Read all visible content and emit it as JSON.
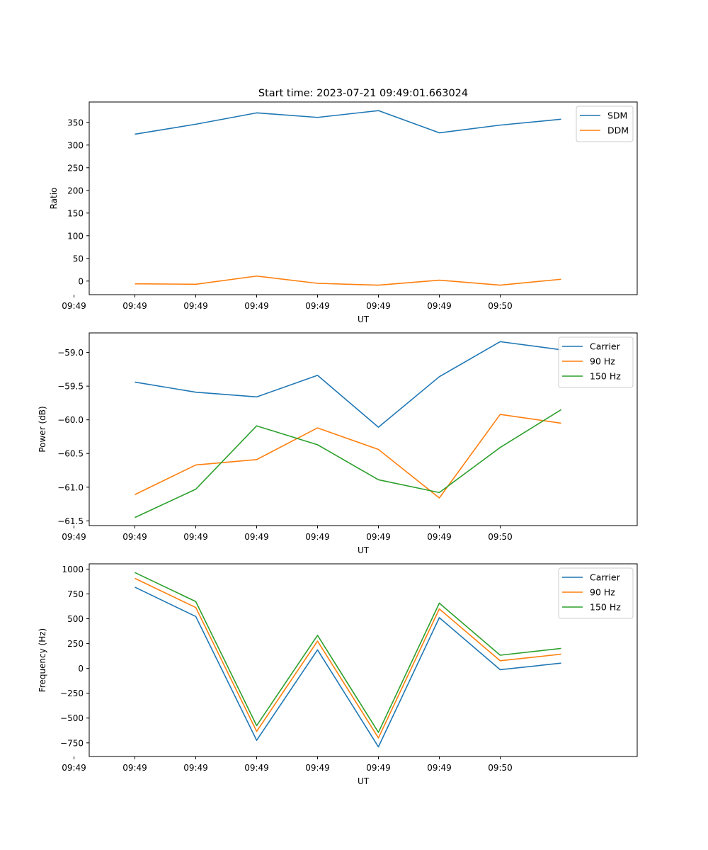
{
  "chart_data": [
    {
      "type": "line",
      "title": "Start time: 2023-07-21 09:49:01.663024",
      "xlabel": "UT",
      "ylabel": "Ratio",
      "x_ticks": [
        "09:49",
        "09:49",
        "09:49",
        "09:49",
        "09:49",
        "09:49",
        "09:49",
        "09:50"
      ],
      "x_points": [
        1,
        2,
        3,
        4,
        5,
        6,
        7,
        8
      ],
      "xlim": [
        0.25,
        9.25
      ],
      "ylim": [
        -30,
        395
      ],
      "y_ticks": [
        0,
        50,
        100,
        150,
        200,
        250,
        300,
        350
      ],
      "y_tick_labels": [
        "0",
        "50",
        "100",
        "150",
        "200",
        "250",
        "300",
        "350"
      ],
      "legend_position": "upper right",
      "grid": false,
      "series": [
        {
          "name": "SDM",
          "color": "#1f77b4",
          "values": [
            324,
            346,
            371,
            361,
            376,
            327,
            344,
            357
          ]
        },
        {
          "name": "DDM",
          "color": "#ff7f0e",
          "values": [
            -6,
            -7,
            11,
            -5,
            -9,
            2,
            -9,
            4
          ]
        }
      ]
    },
    {
      "type": "line",
      "title": "",
      "xlabel": "UT",
      "ylabel": "Power (dB)",
      "x_ticks": [
        "09:49",
        "09:49",
        "09:49",
        "09:49",
        "09:49",
        "09:49",
        "09:49",
        "09:50"
      ],
      "x_points": [
        1,
        2,
        3,
        4,
        5,
        6,
        7,
        8
      ],
      "xlim": [
        0.25,
        9.25
      ],
      "ylim": [
        -61.57,
        -58.71
      ],
      "y_ticks": [
        -61.5,
        -61.0,
        -60.5,
        -60.0,
        -59.5,
        -59.0
      ],
      "y_tick_labels": [
        "−61.5",
        "−61.0",
        "−60.5",
        "−60.0",
        "−59.5",
        "−59.0"
      ],
      "legend_position": "upper right",
      "grid": false,
      "series": [
        {
          "name": "Carrier",
          "color": "#1f77b4",
          "values": [
            -59.44,
            -59.59,
            -59.66,
            -59.34,
            -60.11,
            -59.36,
            -58.84,
            -58.96
          ]
        },
        {
          "name": "90 Hz",
          "color": "#ff7f0e",
          "values": [
            -61.11,
            -60.67,
            -60.59,
            -60.12,
            -60.44,
            -61.16,
            -59.92,
            -60.05
          ]
        },
        {
          "name": "150 Hz",
          "color": "#2ca02c",
          "values": [
            -61.45,
            -61.03,
            -60.09,
            -60.37,
            -60.89,
            -61.08,
            -60.41,
            -59.85
          ]
        }
      ]
    },
    {
      "type": "line",
      "title": "",
      "xlabel": "UT",
      "ylabel": "Frequency (Hz)",
      "x_ticks": [
        "09:49",
        "09:49",
        "09:49",
        "09:49",
        "09:49",
        "09:49",
        "09:49",
        "09:50"
      ],
      "x_points": [
        1,
        2,
        3,
        4,
        5,
        6,
        7,
        8
      ],
      "xlim": [
        0.25,
        9.25
      ],
      "ylim": [
        -887,
        1053
      ],
      "y_ticks": [
        -750,
        -500,
        -250,
        0,
        250,
        500,
        750,
        1000
      ],
      "y_tick_labels": [
        "−750",
        "−500",
        "−250",
        "0",
        "250",
        "500",
        "750",
        "1000"
      ],
      "legend_position": "upper right",
      "grid": false,
      "series": [
        {
          "name": "Carrier",
          "color": "#1f77b4",
          "values": [
            818,
            523,
            -724,
            187,
            -790,
            511,
            -13,
            53
          ]
        },
        {
          "name": "90 Hz",
          "color": "#ff7f0e",
          "values": [
            907,
            613,
            -634,
            275,
            -700,
            599,
            77,
            143
          ]
        },
        {
          "name": "150 Hz",
          "color": "#2ca02c",
          "values": [
            965,
            673,
            -576,
            333,
            -644,
            657,
            133,
            201
          ]
        }
      ]
    }
  ]
}
